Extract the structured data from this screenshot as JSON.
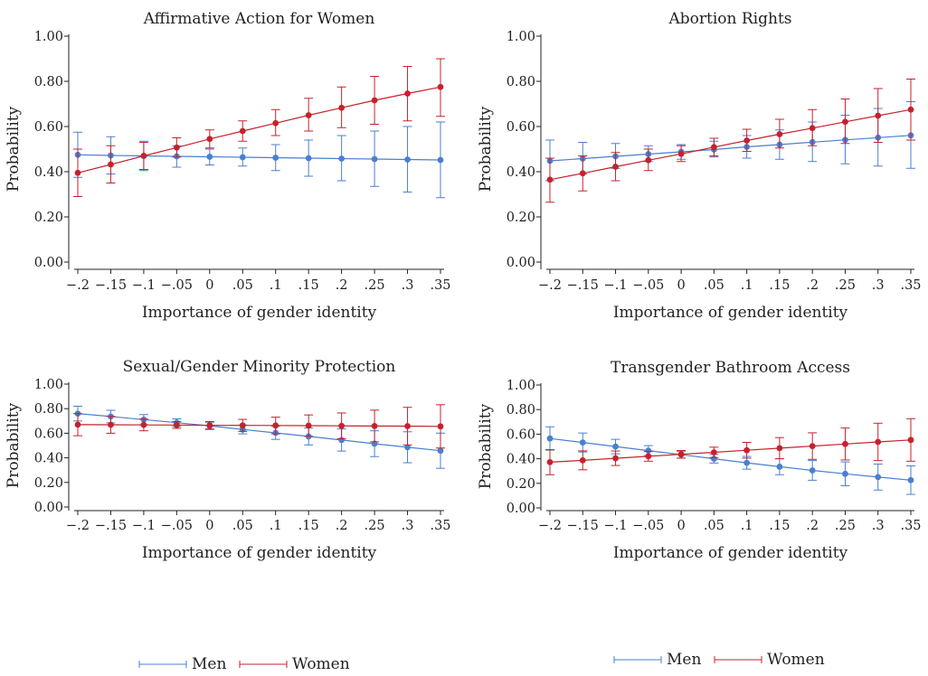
{
  "chart_data": [
    {
      "type": "line",
      "title": "Affirmative Action for Women",
      "xlabel": "Importance of gender identity",
      "ylabel": "Probability",
      "x": [
        -0.2,
        -0.15,
        -0.1,
        -0.05,
        0,
        0.05,
        0.1,
        0.15,
        0.2,
        0.25,
        0.3,
        0.35
      ],
      "x_tick_labels": [
        "−.2",
        "−.15",
        "−.1",
        "−.05",
        "0",
        ".05",
        ".1",
        ".15",
        ".2",
        ".25",
        ".3",
        ".35"
      ],
      "y_ticks": [
        0,
        0.2,
        0.4,
        0.6,
        0.8,
        1.0
      ],
      "y_tick_labels": [
        "0.00",
        "0.20",
        "0.40",
        "0.60",
        "0.80",
        "1.00"
      ],
      "ylim": [
        0,
        1
      ],
      "grid": false,
      "series": [
        {
          "name": "Men",
          "color": "#4a7fd0",
          "values": [
            0.475,
            0.472,
            0.47,
            0.468,
            0.466,
            0.464,
            0.462,
            0.46,
            0.458,
            0.456,
            0.454,
            0.452
          ],
          "lower": [
            0.375,
            0.39,
            0.405,
            0.42,
            0.43,
            0.425,
            0.405,
            0.38,
            0.36,
            0.335,
            0.31,
            0.285
          ],
          "upper": [
            0.575,
            0.555,
            0.535,
            0.515,
            0.5,
            0.505,
            0.52,
            0.54,
            0.56,
            0.58,
            0.6,
            0.62
          ]
        },
        {
          "name": "Women",
          "color": "#c4222c",
          "values": [
            0.395,
            0.432,
            0.47,
            0.507,
            0.545,
            0.58,
            0.615,
            0.65,
            0.683,
            0.716,
            0.746,
            0.775
          ],
          "lower": [
            0.29,
            0.35,
            0.41,
            0.465,
            0.505,
            0.535,
            0.56,
            0.58,
            0.595,
            0.61,
            0.625,
            0.645
          ],
          "upper": [
            0.5,
            0.515,
            0.53,
            0.55,
            0.585,
            0.625,
            0.675,
            0.725,
            0.775,
            0.822,
            0.866,
            0.9
          ]
        }
      ]
    },
    {
      "type": "line",
      "title": "Abortion Rights",
      "xlabel": "Importance of gender identity",
      "ylabel": "Probability",
      "x": [
        -0.2,
        -0.15,
        -0.1,
        -0.05,
        0,
        0.05,
        0.1,
        0.15,
        0.2,
        0.25,
        0.3,
        0.35
      ],
      "x_tick_labels": [
        "−.2",
        "−.15",
        "−.1",
        "−.05",
        "0",
        ".05",
        ".1",
        ".15",
        ".2",
        ".25",
        ".3",
        ".35"
      ],
      "y_ticks": [
        0,
        0.2,
        0.4,
        0.6,
        0.8,
        1.0
      ],
      "y_tick_labels": [
        "0.00",
        "0.20",
        "0.40",
        "0.60",
        "0.80",
        "1.00"
      ],
      "ylim": [
        0,
        1
      ],
      "grid": false,
      "series": [
        {
          "name": "Men",
          "color": "#4a7fd0",
          "values": [
            0.448,
            0.458,
            0.468,
            0.478,
            0.488,
            0.498,
            0.51,
            0.52,
            0.531,
            0.541,
            0.551,
            0.561
          ],
          "lower": [
            0.36,
            0.39,
            0.415,
            0.445,
            0.455,
            0.465,
            0.46,
            0.455,
            0.445,
            0.435,
            0.425,
            0.415
          ],
          "upper": [
            0.54,
            0.53,
            0.525,
            0.515,
            0.52,
            0.535,
            0.56,
            0.585,
            0.62,
            0.65,
            0.68,
            0.71
          ]
        },
        {
          "name": "Women",
          "color": "#c4222c",
          "values": [
            0.365,
            0.393,
            0.422,
            0.451,
            0.479,
            0.509,
            0.538,
            0.566,
            0.593,
            0.621,
            0.648,
            0.675
          ],
          "lower": [
            0.265,
            0.315,
            0.36,
            0.405,
            0.445,
            0.47,
            0.49,
            0.505,
            0.515,
            0.525,
            0.53,
            0.54
          ],
          "upper": [
            0.46,
            0.47,
            0.485,
            0.5,
            0.515,
            0.548,
            0.588,
            0.632,
            0.675,
            0.722,
            0.768,
            0.81
          ]
        }
      ]
    },
    {
      "type": "line",
      "title": "Sexual/Gender Minority Protection",
      "xlabel": "Importance of gender identity",
      "ylabel": "Probability",
      "x": [
        -0.2,
        -0.15,
        -0.1,
        -0.05,
        0,
        0.05,
        0.1,
        0.15,
        0.2,
        0.25,
        0.3,
        0.35
      ],
      "x_tick_labels": [
        "−.2",
        "−.15",
        "−.1",
        "−.05",
        "0",
        ".05",
        ".1",
        ".15",
        ".2",
        ".25",
        ".3",
        ".35"
      ],
      "y_ticks": [
        0,
        0.2,
        0.4,
        0.6,
        0.8,
        1.0
      ],
      "y_tick_labels": [
        "0.00",
        "0.20",
        "0.40",
        "0.60",
        "0.80",
        "1.00"
      ],
      "ylim": [
        0,
        1
      ],
      "grid": false,
      "series": [
        {
          "name": "Men",
          "color": "#4a7fd0",
          "values": [
            0.76,
            0.736,
            0.711,
            0.686,
            0.66,
            0.631,
            0.603,
            0.574,
            0.545,
            0.515,
            0.486,
            0.458
          ],
          "lower": [
            0.7,
            0.685,
            0.67,
            0.655,
            0.63,
            0.595,
            0.55,
            0.505,
            0.455,
            0.41,
            0.36,
            0.315
          ],
          "upper": [
            0.82,
            0.787,
            0.752,
            0.717,
            0.69,
            0.667,
            0.656,
            0.643,
            0.635,
            0.62,
            0.612,
            0.601
          ]
        },
        {
          "name": "Women",
          "color": "#c4222c",
          "values": [
            0.67,
            0.669,
            0.668,
            0.667,
            0.665,
            0.664,
            0.663,
            0.662,
            0.66,
            0.659,
            0.658,
            0.656
          ],
          "lower": [
            0.58,
            0.6,
            0.62,
            0.64,
            0.635,
            0.615,
            0.595,
            0.575,
            0.555,
            0.53,
            0.505,
            0.48
          ],
          "upper": [
            0.76,
            0.738,
            0.716,
            0.694,
            0.695,
            0.713,
            0.731,
            0.749,
            0.765,
            0.788,
            0.811,
            0.832
          ]
        }
      ]
    },
    {
      "type": "line",
      "title": "Transgender Bathroom Access",
      "xlabel": "Importance of gender identity",
      "ylabel": "Probability",
      "x": [
        -0.2,
        -0.15,
        -0.1,
        -0.05,
        0,
        0.05,
        0.1,
        0.15,
        0.2,
        0.25,
        0.3,
        0.35
      ],
      "x_tick_labels": [
        "−.2",
        "−.15",
        "−.1",
        "−.05",
        "0",
        ".05",
        ".1",
        ".15",
        ".2",
        ".25",
        ".3",
        ".35"
      ],
      "y_ticks": [
        0,
        0.2,
        0.4,
        0.6,
        0.8,
        1.0
      ],
      "y_tick_labels": [
        "0.00",
        "0.20",
        "0.40",
        "0.60",
        "0.80",
        "1.00"
      ],
      "ylim": [
        0,
        1
      ],
      "grid": false,
      "series": [
        {
          "name": "Men",
          "color": "#4a7fd0",
          "values": [
            0.565,
            0.532,
            0.499,
            0.466,
            0.433,
            0.4,
            0.367,
            0.335,
            0.305,
            0.277,
            0.251,
            0.226
          ],
          "lower": [
            0.47,
            0.455,
            0.44,
            0.425,
            0.405,
            0.365,
            0.315,
            0.27,
            0.225,
            0.18,
            0.145,
            0.11
          ],
          "upper": [
            0.66,
            0.609,
            0.558,
            0.507,
            0.461,
            0.435,
            0.419,
            0.4,
            0.385,
            0.374,
            0.357,
            0.342
          ]
        },
        {
          "name": "Women",
          "color": "#c4222c",
          "values": [
            0.372,
            0.387,
            0.404,
            0.42,
            0.436,
            0.452,
            0.469,
            0.486,
            0.503,
            0.52,
            0.537,
            0.553
          ],
          "lower": [
            0.27,
            0.31,
            0.345,
            0.38,
            0.405,
            0.41,
            0.405,
            0.4,
            0.395,
            0.39,
            0.385,
            0.38
          ],
          "upper": [
            0.474,
            0.464,
            0.463,
            0.46,
            0.467,
            0.494,
            0.533,
            0.572,
            0.611,
            0.65,
            0.689,
            0.726
          ]
        }
      ]
    }
  ],
  "legends": [
    {
      "items": [
        {
          "name": "Men",
          "color": "#4a7fd0"
        },
        {
          "name": "Women",
          "color": "#c4222c"
        }
      ]
    },
    {
      "items": [
        {
          "name": "Men",
          "color": "#4a7fd0"
        },
        {
          "name": "Women",
          "color": "#c4222c"
        }
      ]
    }
  ]
}
